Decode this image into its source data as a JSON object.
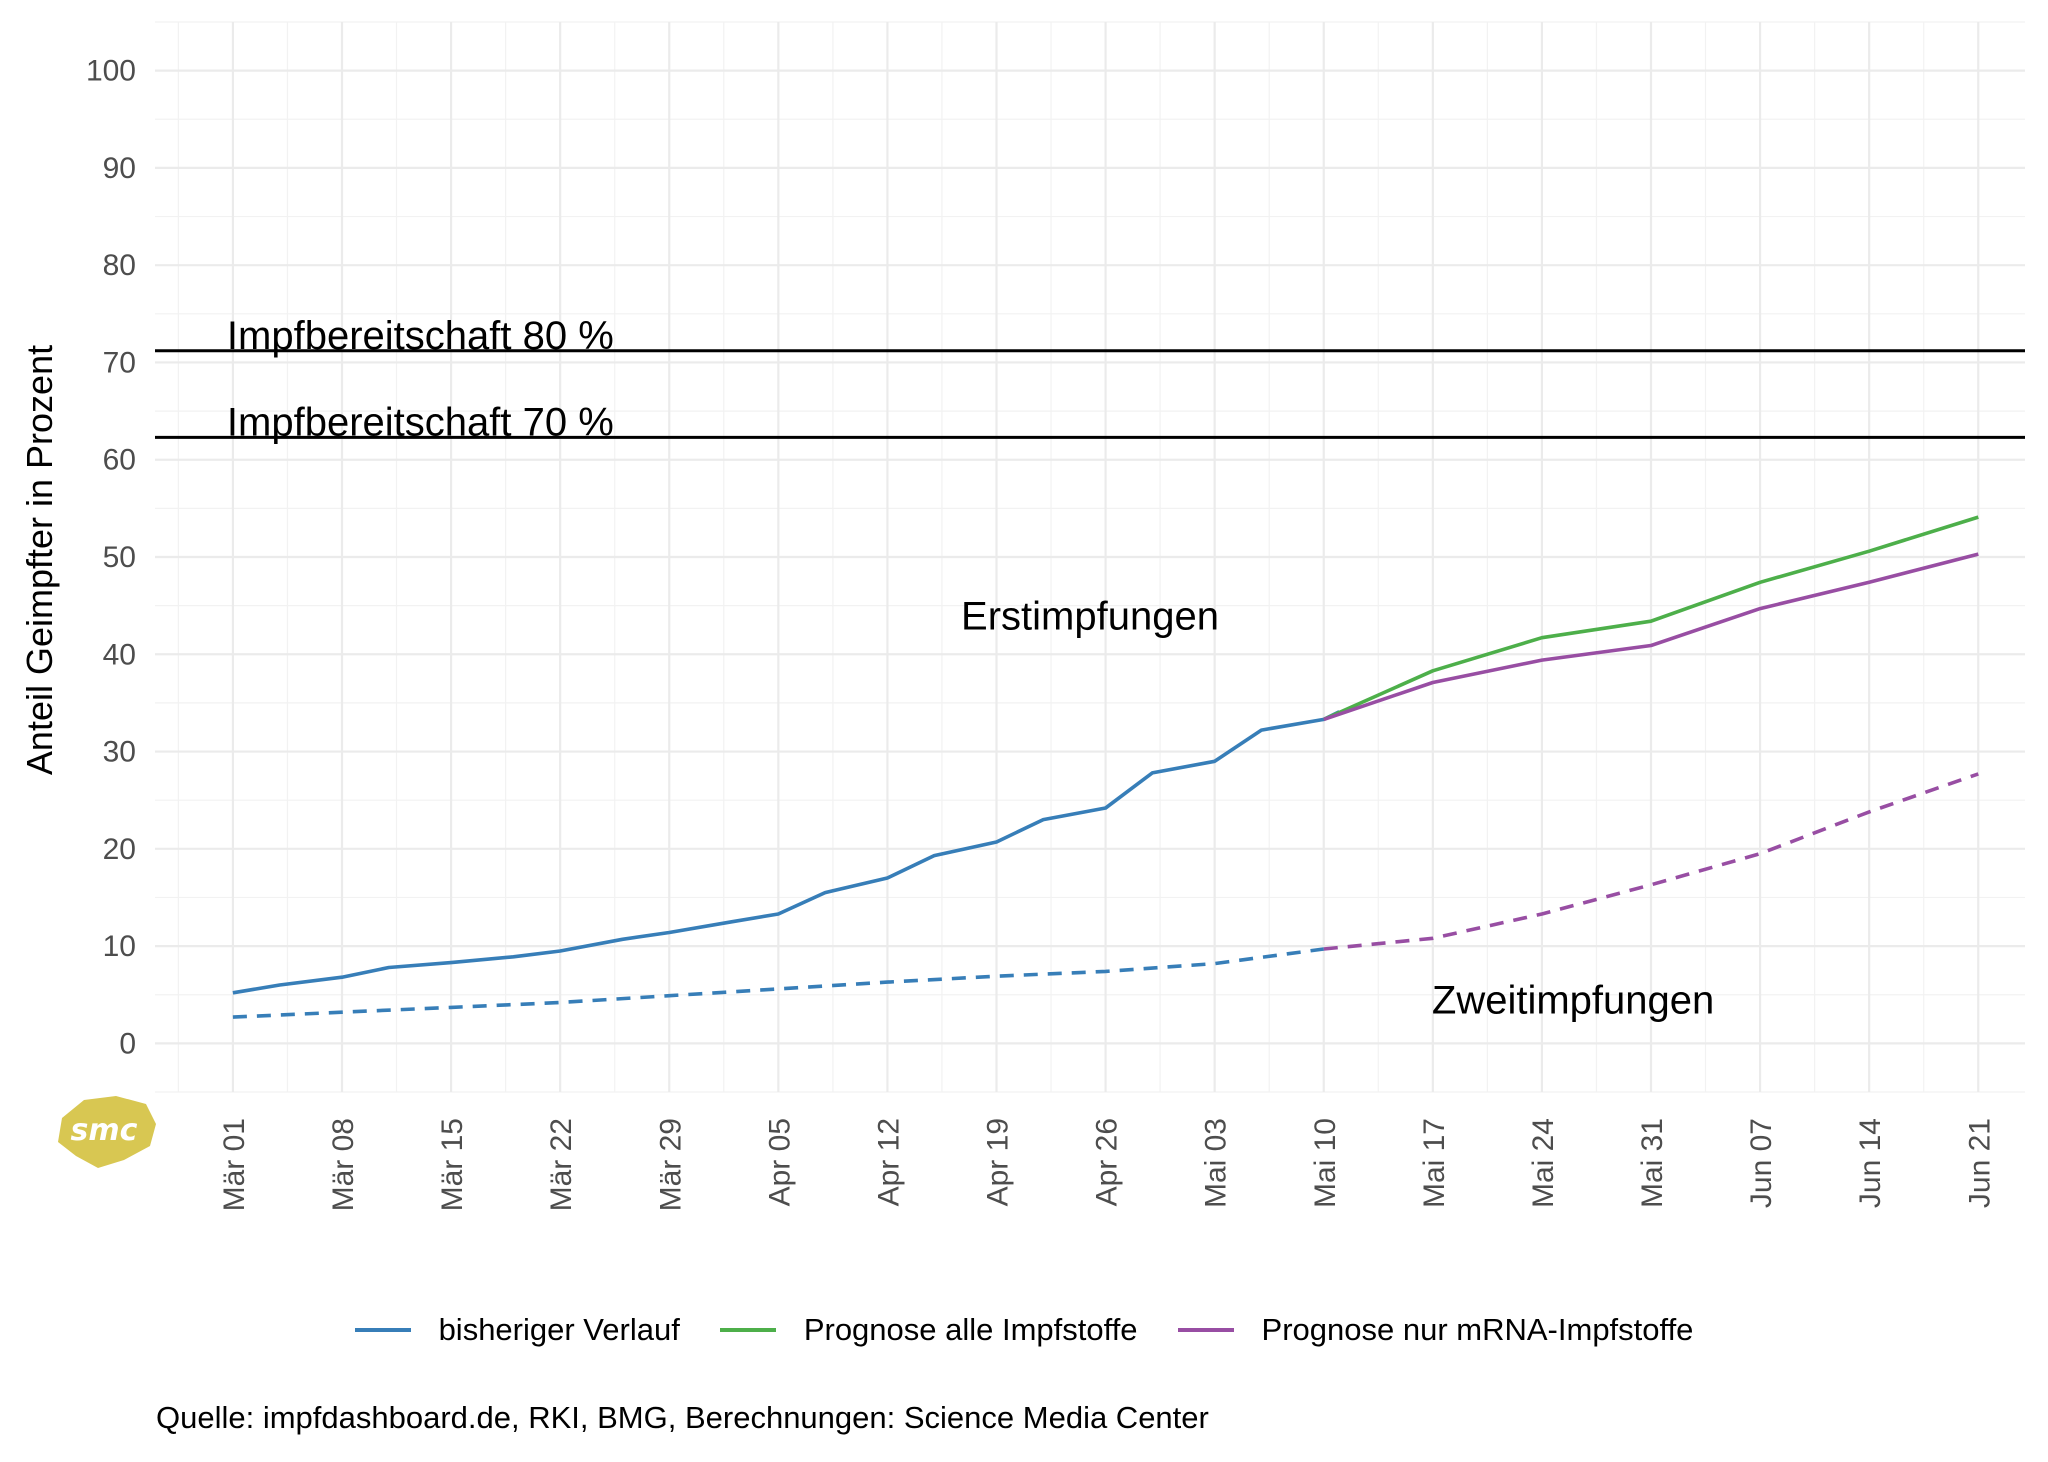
{
  "chart_data": {
    "type": "line",
    "ylabel": "Anteil Geimpfter in Prozent",
    "ylim": [
      -5,
      105
    ],
    "yticks": [
      0,
      10,
      20,
      30,
      40,
      50,
      60,
      70,
      80,
      90,
      100
    ],
    "xticks": [
      "2021-03-01",
      "2021-03-08",
      "2021-03-15",
      "2021-03-22",
      "2021-03-29",
      "2021-04-05",
      "2021-04-12",
      "2021-04-19",
      "2021-04-26",
      "2021-05-03",
      "2021-05-10",
      "2021-05-17",
      "2021-05-24",
      "2021-05-31",
      "2021-06-07",
      "2021-06-14",
      "2021-06-21"
    ],
    "xtick_labels": [
      "Mär 01",
      "Mär 08",
      "Mär 15",
      "Mär 22",
      "Mär 29",
      "Apr 05",
      "Apr 12",
      "Apr 19",
      "Apr 26",
      "Mai 03",
      "Mai 10",
      "Mai 17",
      "Mai 24",
      "Mai 31",
      "Jun 07",
      "Jun 14",
      "Jun 21"
    ],
    "xlim": [
      "2021-02-24",
      "2021-06-24"
    ],
    "grid": true,
    "hlines": [
      {
        "y": 71.2,
        "label": "Impfbereitschaft 80 %"
      },
      {
        "y": 62.3,
        "label": "Impfbereitschaft 70 %"
      }
    ],
    "annotations": [
      {
        "text": "Erstimpfungen",
        "x": "2021-04-25",
        "y": 44
      },
      {
        "text": "Zweitimpfungen",
        "x": "2021-05-26",
        "y": 4.5
      }
    ],
    "series": [
      {
        "name": "bisheriger Verlauf",
        "color": "#377eb8",
        "style": "solid",
        "x": [
          "2021-03-01",
          "2021-03-04",
          "2021-03-08",
          "2021-03-11",
          "2021-03-15",
          "2021-03-19",
          "2021-03-22",
          "2021-03-26",
          "2021-03-29",
          "2021-04-02",
          "2021-04-05",
          "2021-04-08",
          "2021-04-12",
          "2021-04-15",
          "2021-04-19",
          "2021-04-22",
          "2021-04-26",
          "2021-04-29",
          "2021-05-03",
          "2021-05-06",
          "2021-05-10",
          "2021-05-11"
        ],
        "y": [
          5.2,
          6.0,
          6.8,
          7.8,
          8.3,
          8.9,
          9.5,
          10.7,
          11.4,
          12.5,
          13.3,
          15.5,
          17.0,
          19.3,
          20.7,
          23.0,
          24.2,
          27.8,
          29.0,
          32.2,
          33.3,
          34.1
        ]
      },
      {
        "name": "bisheriger Verlauf",
        "color": "#377eb8",
        "style": "dashed",
        "x": [
          "2021-03-01",
          "2021-03-08",
          "2021-03-15",
          "2021-03-22",
          "2021-03-29",
          "2021-04-05",
          "2021-04-12",
          "2021-04-19",
          "2021-04-26",
          "2021-05-03",
          "2021-05-10"
        ],
        "y": [
          2.7,
          3.2,
          3.7,
          4.2,
          4.9,
          5.6,
          6.3,
          6.9,
          7.4,
          8.2,
          9.7
        ]
      },
      {
        "name": "Prognose alle Impfstoffe",
        "color": "#4daf4a",
        "style": "solid",
        "x": [
          "2021-05-10",
          "2021-05-17",
          "2021-05-24",
          "2021-05-31",
          "2021-06-07",
          "2021-06-14",
          "2021-06-21"
        ],
        "y": [
          33.3,
          38.3,
          41.7,
          43.4,
          47.4,
          50.6,
          54.1
        ]
      },
      {
        "name": "Prognose nur mRNA-Impfstoffe",
        "color": "#984ea3",
        "style": "solid",
        "x": [
          "2021-05-10",
          "2021-05-17",
          "2021-05-24",
          "2021-05-31",
          "2021-06-07",
          "2021-06-14",
          "2021-06-21"
        ],
        "y": [
          33.3,
          37.1,
          39.4,
          40.9,
          44.7,
          47.4,
          50.3
        ]
      },
      {
        "name": "Prognose nur mRNA-Impfstoffe",
        "color": "#984ea3",
        "style": "dashed",
        "x": [
          "2021-05-10",
          "2021-05-17",
          "2021-05-24",
          "2021-05-31",
          "2021-06-07",
          "2021-06-14",
          "2021-06-21"
        ],
        "y": [
          9.7,
          10.8,
          13.3,
          16.3,
          19.5,
          23.8,
          27.7
        ]
      }
    ]
  },
  "legend": {
    "items": [
      {
        "label": "bisheriger Verlauf",
        "color": "#377eb8"
      },
      {
        "label": "Prognose alle Impfstoffe",
        "color": "#4daf4a"
      },
      {
        "label": "Prognose nur mRNA-Impfstoffe",
        "color": "#984ea3"
      }
    ]
  },
  "caption": "Quelle: impfdashboard.de, RKI, BMG, Berechnungen: Science Media Center",
  "logo": {
    "text": "smc",
    "color": "#d8c752"
  }
}
